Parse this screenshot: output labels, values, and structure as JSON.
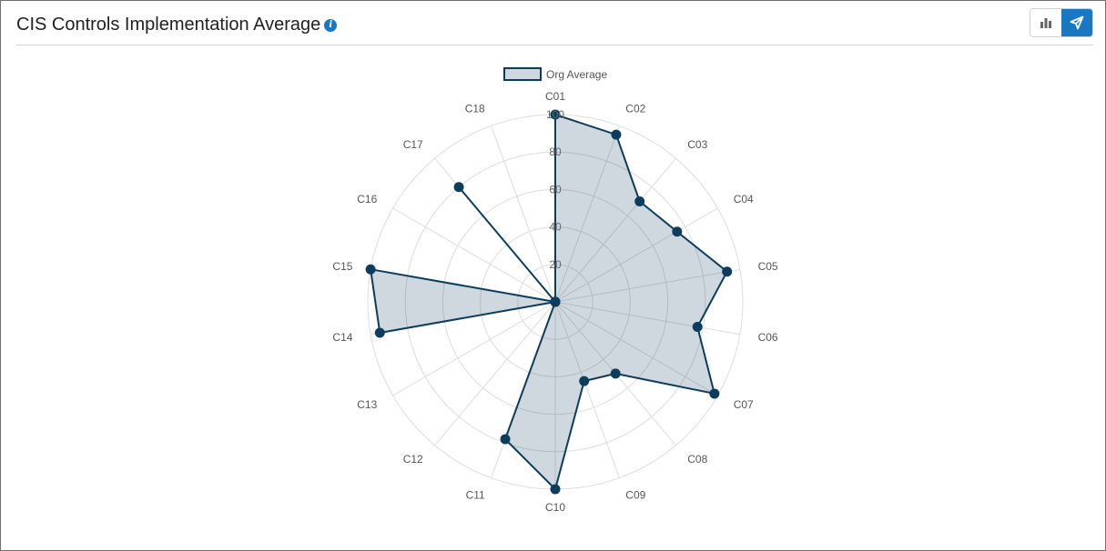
{
  "header": {
    "title": "CIS Controls Implementation Average",
    "info_icon": "info-icon"
  },
  "toolbar": {
    "bar_view_icon": "bar-chart-icon",
    "radar_view_icon": "send-arrow-icon",
    "active_view": "radar"
  },
  "colors": {
    "series_line": "#0d3d5c",
    "series_fill": "rgba(13,61,92,0.2)",
    "grid": "#dddddd",
    "active_toggle": "#1a78c2"
  },
  "chart_data": {
    "type": "radar",
    "categories": [
      "C01",
      "C02",
      "C03",
      "C04",
      "C05",
      "C06",
      "C07",
      "C08",
      "C09",
      "C10",
      "C11",
      "C12",
      "C13",
      "C14",
      "C15",
      "C16",
      "C17",
      "C18"
    ],
    "series": [
      {
        "name": "Org Average",
        "values": [
          100,
          95,
          70,
          75,
          93,
          77,
          98,
          50,
          45,
          100,
          78,
          0,
          0,
          95,
          100,
          0,
          80,
          0
        ]
      }
    ],
    "r_ticks": [
      "20",
      "40",
      "60",
      "80",
      "100"
    ],
    "rlim": [
      0,
      100
    ],
    "grid": true,
    "legend_position": "top-center"
  }
}
